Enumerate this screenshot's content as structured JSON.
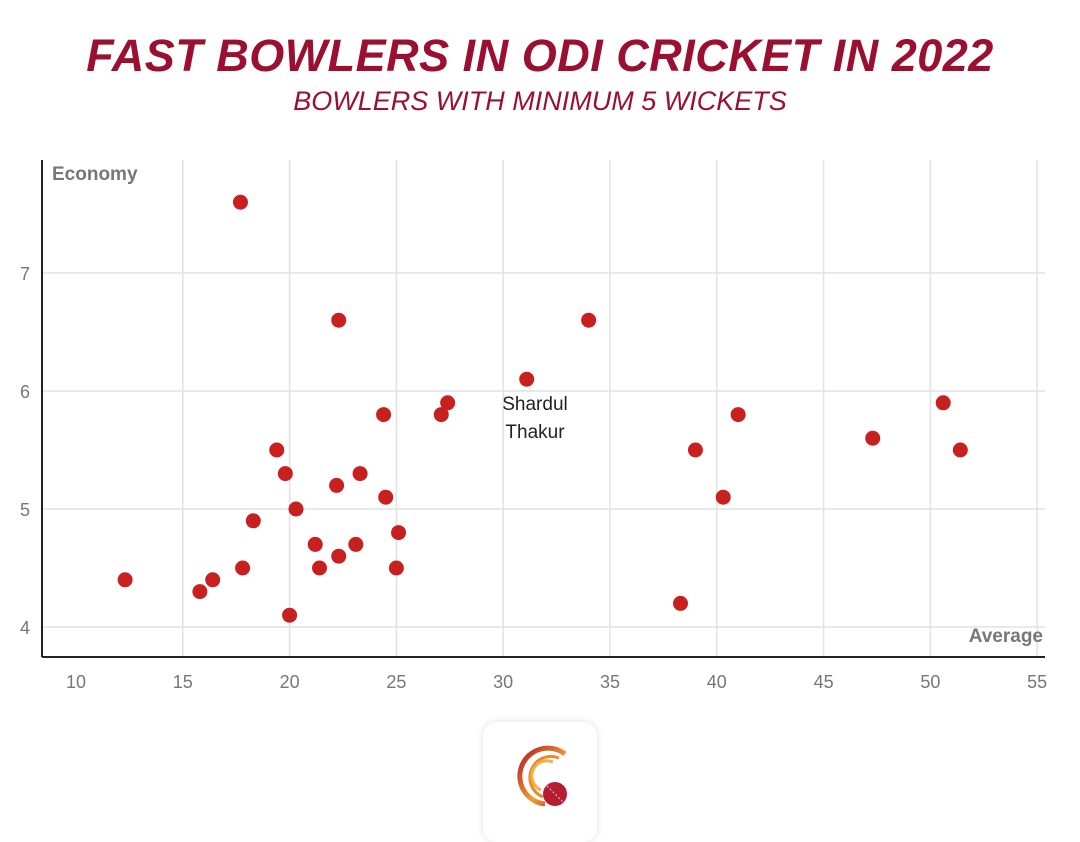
{
  "chart_data": {
    "type": "scatter",
    "title": "FAST BOWLERS IN ODI CRICKET IN 2022",
    "subtitle": "BOWLERS WITH MINIMUM 5 WICKETS",
    "xlabel": "Average",
    "ylabel": "Economy",
    "xlim": [
      10,
      55
    ],
    "ylim": [
      3.75,
      7.95
    ],
    "xticks": [
      10,
      15,
      20,
      25,
      30,
      35,
      40,
      45,
      50,
      55
    ],
    "yticks": [
      4,
      5,
      6,
      7
    ],
    "grid": true,
    "point_color": "#c8201e",
    "points": [
      {
        "x": 12.3,
        "y": 4.4
      },
      {
        "x": 15.8,
        "y": 4.3
      },
      {
        "x": 16.4,
        "y": 4.4
      },
      {
        "x": 17.8,
        "y": 4.5
      },
      {
        "x": 17.7,
        "y": 7.6
      },
      {
        "x": 18.3,
        "y": 4.9
      },
      {
        "x": 19.4,
        "y": 5.5
      },
      {
        "x": 19.8,
        "y": 5.3
      },
      {
        "x": 20.0,
        "y": 4.1
      },
      {
        "x": 20.3,
        "y": 5.0
      },
      {
        "x": 21.2,
        "y": 4.7
      },
      {
        "x": 21.4,
        "y": 4.5
      },
      {
        "x": 22.2,
        "y": 5.2
      },
      {
        "x": 22.3,
        "y": 6.6
      },
      {
        "x": 22.3,
        "y": 4.6
      },
      {
        "x": 23.1,
        "y": 4.7
      },
      {
        "x": 23.3,
        "y": 5.3
      },
      {
        "x": 24.4,
        "y": 5.8
      },
      {
        "x": 24.5,
        "y": 5.1
      },
      {
        "x": 25.0,
        "y": 4.5
      },
      {
        "x": 25.1,
        "y": 4.8
      },
      {
        "x": 27.1,
        "y": 5.8
      },
      {
        "x": 27.4,
        "y": 5.9
      },
      {
        "x": 31.1,
        "y": 6.1,
        "label": "Shardul Thakur"
      },
      {
        "x": 34.0,
        "y": 6.6
      },
      {
        "x": 38.3,
        "y": 4.2
      },
      {
        "x": 39.0,
        "y": 5.5
      },
      {
        "x": 40.3,
        "y": 5.1
      },
      {
        "x": 41.0,
        "y": 5.8
      },
      {
        "x": 47.3,
        "y": 5.6
      },
      {
        "x": 50.6,
        "y": 5.9
      },
      {
        "x": 51.4,
        "y": 5.5
      }
    ],
    "annotation": {
      "line1": "Shardul",
      "line2": "Thakur"
    }
  }
}
